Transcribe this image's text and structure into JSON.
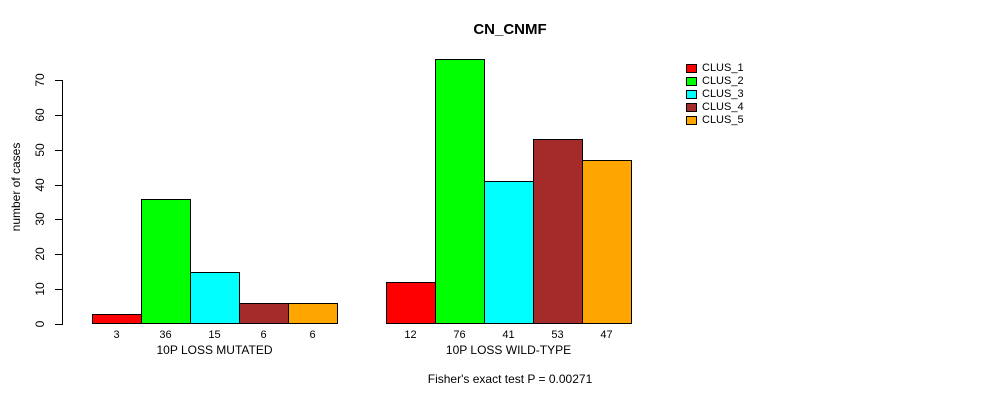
{
  "chart_data": {
    "type": "bar",
    "title": "CN_CNMF",
    "ylabel": "number of cases",
    "xlabel": "",
    "ylim": [
      0,
      70
    ],
    "yticks": [
      0,
      10,
      20,
      30,
      40,
      50,
      60,
      70
    ],
    "grid": false,
    "legend_position": "right",
    "bar_border_color": "#000000",
    "categories": [
      "10P LOSS MUTATED",
      "10P LOSS WILD-TYPE"
    ],
    "series": [
      {
        "name": "CLUS_1",
        "color": "#FF0000",
        "values": [
          3,
          12
        ]
      },
      {
        "name": "CLUS_2",
        "color": "#00FF00",
        "values": [
          36,
          76
        ]
      },
      {
        "name": "CLUS_3",
        "color": "#00FFFF",
        "values": [
          15,
          41
        ]
      },
      {
        "name": "CLUS_4",
        "color": "#A52A2A",
        "values": [
          6,
          53
        ]
      },
      {
        "name": "CLUS_5",
        "color": "#FFA500",
        "values": [
          6,
          47
        ]
      }
    ],
    "bar_value_labels": [
      [
        3,
        36,
        15,
        6,
        6
      ],
      [
        12,
        76,
        41,
        53,
        47
      ]
    ],
    "footer": "Fisher's exact test P = 0.00271"
  }
}
